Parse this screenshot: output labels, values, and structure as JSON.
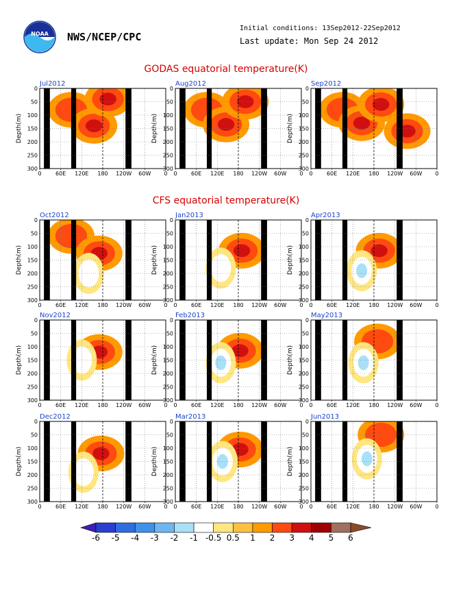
{
  "header": {
    "agency": "NWS/NCEP/CPC",
    "initial_conditions": "Initial conditions: 13Sep2012-22Sep2012",
    "last_update": "Last update: Mon Sep 24 2012",
    "logo_text": "NOAA"
  },
  "sections": {
    "godas_title": "GODAS equatorial temperature(K)",
    "cfs_title": "CFS equatorial temperature(K)"
  },
  "axes": {
    "x_ticks": [
      "0",
      "60E",
      "120E",
      "180",
      "120W",
      "60W",
      "0"
    ],
    "y_ticks": [
      "0",
      "50",
      "100",
      "150",
      "200",
      "250",
      "300"
    ],
    "ylabel": "Depth(m)"
  },
  "colorbar": {
    "labels": [
      "-6",
      "-5",
      "-4",
      "-3",
      "-2",
      "-1",
      "-0.5",
      "0.5",
      "1",
      "2",
      "3",
      "4",
      "5",
      "6"
    ],
    "colors": [
      "#4020b0",
      "#2a3fd0",
      "#2f6ee0",
      "#3f92e8",
      "#6fb6f0",
      "#a8e0f8",
      "#ffffff",
      "#ffe680",
      "#ffc040",
      "#ff9a00",
      "#ff4a10",
      "#d01010",
      "#a00000",
      "#a07060",
      "#8b4a2a"
    ]
  },
  "chart_data": [
    {
      "type": "heatmap",
      "title": "Jul2012",
      "section": "GODAS",
      "features": [
        {
          "lon": 90,
          "depth": 80,
          "value": 2
        },
        {
          "lon": 155,
          "depth": 140,
          "value": 3
        },
        {
          "lon": 195,
          "depth": 40,
          "value": 3
        }
      ]
    },
    {
      "type": "heatmap",
      "title": "Aug2012",
      "section": "GODAS",
      "features": [
        {
          "lon": 90,
          "depth": 80,
          "value": 2
        },
        {
          "lon": 145,
          "depth": 135,
          "value": 3
        },
        {
          "lon": 200,
          "depth": 50,
          "value": 3
        }
      ]
    },
    {
      "type": "heatmap",
      "title": "Sep2012",
      "section": "GODAS",
      "features": [
        {
          "lon": 90,
          "depth": 80,
          "value": 2
        },
        {
          "lon": 145,
          "depth": 130,
          "value": 3
        },
        {
          "lon": 200,
          "depth": 60,
          "value": 3
        },
        {
          "lon": 275,
          "depth": 160,
          "value": 3
        }
      ]
    },
    {
      "type": "heatmap",
      "title": "Oct2012",
      "section": "CFS",
      "features": [
        {
          "lon": 90,
          "depth": 60,
          "value": 2
        },
        {
          "lon": 170,
          "depth": 125,
          "value": 3
        },
        {
          "lon": 140,
          "depth": 200,
          "value": -1
        }
      ]
    },
    {
      "type": "heatmap",
      "title": "Jan2013",
      "section": "CFS",
      "features": [
        {
          "lon": 190,
          "depth": 115,
          "value": 3
        },
        {
          "lon": 130,
          "depth": 180,
          "value": -1
        }
      ]
    },
    {
      "type": "heatmap",
      "title": "Apr2013",
      "section": "CFS",
      "features": [
        {
          "lon": 195,
          "depth": 115,
          "value": 3
        },
        {
          "lon": 145,
          "depth": 190,
          "value": -2
        }
      ]
    },
    {
      "type": "heatmap",
      "title": "Nov2012",
      "section": "CFS",
      "features": [
        {
          "lon": 170,
          "depth": 120,
          "value": 3
        },
        {
          "lon": 120,
          "depth": 150,
          "value": -1
        }
      ]
    },
    {
      "type": "heatmap",
      "title": "Feb2013",
      "section": "CFS",
      "features": [
        {
          "lon": 185,
          "depth": 115,
          "value": 3
        },
        {
          "lon": 130,
          "depth": 160,
          "value": -2
        }
      ]
    },
    {
      "type": "heatmap",
      "title": "May2013",
      "section": "CFS",
      "features": [
        {
          "lon": 190,
          "depth": 80,
          "value": 2
        },
        {
          "lon": 150,
          "depth": 160,
          "value": -2
        }
      ]
    },
    {
      "type": "heatmap",
      "title": "Dec2012",
      "section": "CFS",
      "features": [
        {
          "lon": 175,
          "depth": 120,
          "value": 3
        },
        {
          "lon": 125,
          "depth": 190,
          "value": -1
        }
      ]
    },
    {
      "type": "heatmap",
      "title": "Mar2013",
      "section": "CFS",
      "features": [
        {
          "lon": 185,
          "depth": 105,
          "value": 3
        },
        {
          "lon": 135,
          "depth": 150,
          "value": -2
        }
      ]
    },
    {
      "type": "heatmap",
      "title": "Jun2013",
      "section": "CFS",
      "features": [
        {
          "lon": 200,
          "depth": 50,
          "value": 2
        },
        {
          "lon": 160,
          "depth": 140,
          "value": -2
        }
      ]
    }
  ]
}
